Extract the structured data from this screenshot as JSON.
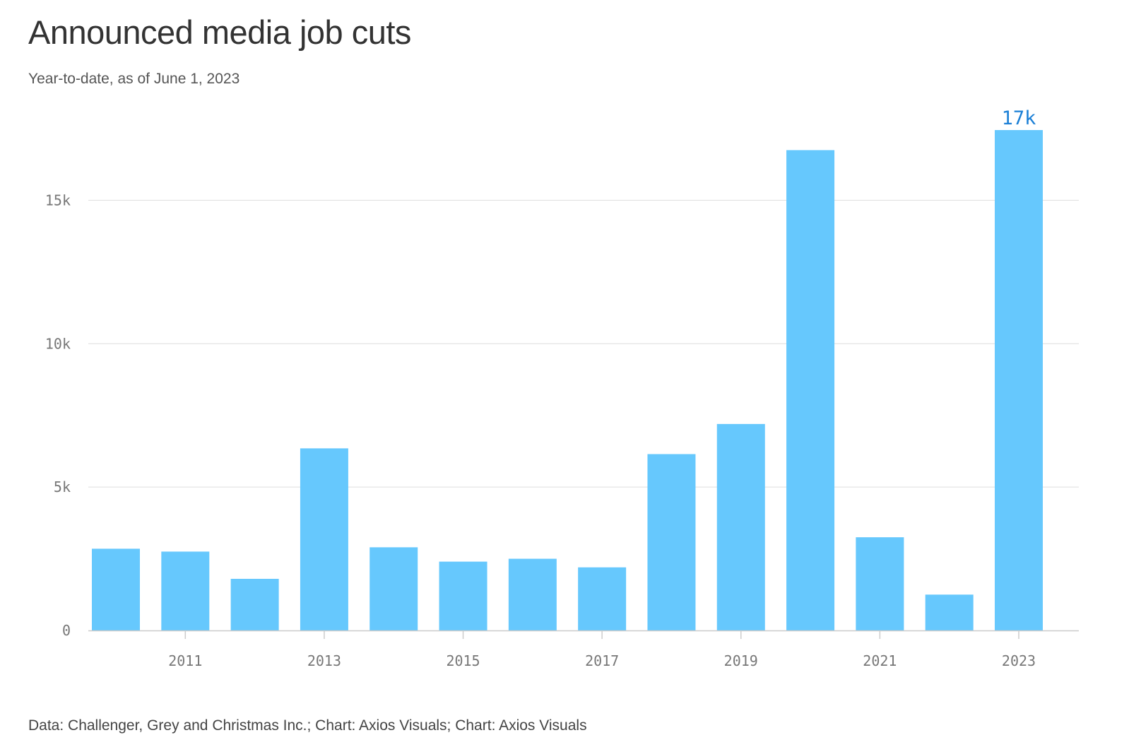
{
  "header": {
    "title": "Announced media job cuts",
    "subtitle": "Year-to-date, as of June 1, 2023"
  },
  "footer": {
    "source": "Data: Challenger, Grey and Christmas Inc.; Chart: Axios Visuals; Chart: Axios Visuals"
  },
  "colors": {
    "bar": "#66c8fd",
    "highlight_label": "#1a7fd6",
    "gridline": "#dddddd",
    "axis": "#cccccc"
  },
  "chart_data": {
    "type": "bar",
    "title": "Announced media job cuts",
    "subtitle": "Year-to-date, as of June 1, 2023",
    "xlabel": "",
    "ylabel": "",
    "categories": [
      "2010",
      "2011",
      "2012",
      "2013",
      "2014",
      "2015",
      "2016",
      "2017",
      "2018",
      "2019",
      "2020",
      "2021",
      "2022",
      "2023"
    ],
    "values": [
      2850,
      2750,
      1800,
      6350,
      2900,
      2400,
      2500,
      2200,
      6150,
      7200,
      16750,
      3250,
      1250,
      17450
    ],
    "ylim": [
      0,
      17500
    ],
    "y_ticks": [
      {
        "value": 0,
        "label": "0"
      },
      {
        "value": 5000,
        "label": "5k"
      },
      {
        "value": 10000,
        "label": "10k"
      },
      {
        "value": 15000,
        "label": "15k"
      }
    ],
    "x_tick_labels": [
      "2011",
      "2013",
      "2015",
      "2017",
      "2019",
      "2021",
      "2023"
    ],
    "annotations": [
      {
        "category": "2023",
        "label": "17k"
      }
    ],
    "grid": true,
    "legend": "none"
  }
}
